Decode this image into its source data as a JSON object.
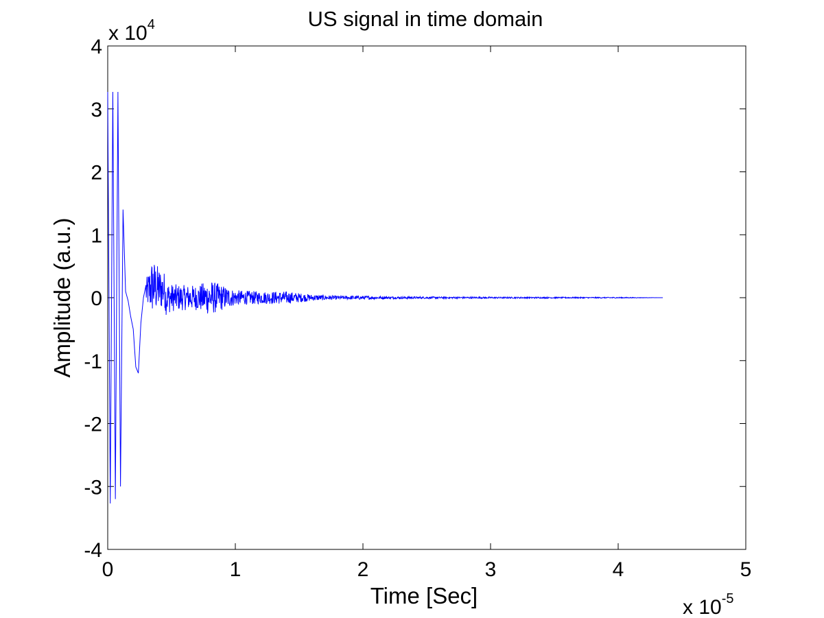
{
  "chart_data": {
    "type": "line",
    "title": "US signal in time domain",
    "xlabel": "Time [Sec]",
    "ylabel": "Amplitude (a.u.)",
    "x_scale": {
      "base": "x 10",
      "exponent": "-5"
    },
    "y_scale": {
      "base": "x 10",
      "exponent": "4"
    },
    "xlim": [
      0,
      5
    ],
    "ylim": [
      -4,
      4
    ],
    "x_ticks": [
      "0",
      "1",
      "2",
      "3",
      "4",
      "5"
    ],
    "y_ticks": [
      "-4",
      "-3",
      "-2",
      "-1",
      "0",
      "1",
      "2",
      "3",
      "4"
    ],
    "grid": false,
    "line_color": "#0000ff",
    "series": [
      {
        "x": [
          0,
          0.02,
          0.04,
          0.06,
          0.08,
          0.1,
          0.12,
          0.14,
          0.16,
          0.18,
          0.2,
          0.22,
          0.24,
          0.26,
          0.28,
          0.3,
          0.35,
          0.4,
          0.5,
          0.6,
          0.7,
          0.8,
          0.9,
          1.0,
          1.2,
          1.4,
          1.6,
          1.8,
          2.0,
          2.2,
          2.6,
          3.0,
          3.5,
          4.0,
          4.35
        ],
        "y": [
          3.27,
          -3.27,
          3.27,
          -3.2,
          3.27,
          -3.0,
          1.4,
          0.1,
          -0.05,
          -0.3,
          -0.5,
          -1.1,
          -1.2,
          -0.4,
          0.0,
          0.2,
          0.45,
          0.35,
          0.22,
          0.2,
          0.2,
          0.28,
          0.2,
          0.12,
          0.1,
          0.1,
          0.05,
          0.03,
          0.03,
          0.02,
          0.015,
          0.012,
          0.01,
          0.008,
          0.0
        ]
      }
    ]
  }
}
